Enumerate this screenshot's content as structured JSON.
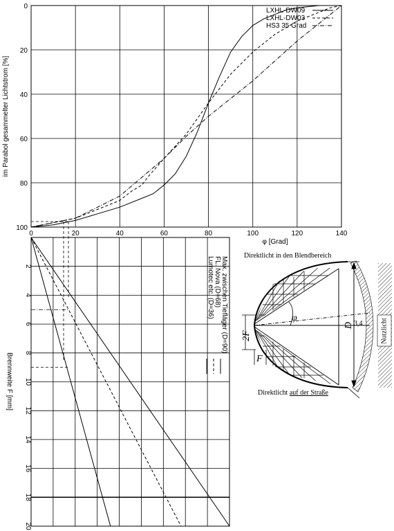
{
  "chart_data": [
    {
      "type": "line",
      "xlabel": "φ [Grad]",
      "ylabel": "im Parabol gesammelter Lichtstrom [%]",
      "xlim": [
        0,
        140
      ],
      "ylim": [
        0,
        100
      ],
      "y_inverted": true,
      "xticks": [
        "0",
        "20",
        "40",
        "60",
        "80",
        "100",
        "120",
        "140"
      ],
      "yticks": [
        "0",
        "20",
        "40",
        "60",
        "80",
        "100"
      ],
      "grid": true,
      "legend_position": "top-right",
      "series": [
        {
          "name": "LXHL-DW09",
          "style": "solid",
          "x": [
            0,
            10,
            20,
            30,
            40,
            50,
            55,
            60,
            65,
            70,
            75,
            80,
            85,
            90,
            95,
            100,
            105,
            110,
            115,
            120,
            125,
            130
          ],
          "y": [
            100,
            99,
            97,
            94,
            91,
            87,
            85,
            81,
            76,
            68,
            57,
            44,
            32,
            21,
            14,
            9,
            6,
            4,
            2,
            1,
            0.5,
            0
          ]
        },
        {
          "name": "LXHL-DW03",
          "style": "dashed",
          "x": [
            0,
            20,
            40,
            45,
            50,
            53,
            60,
            70,
            80,
            90,
            100,
            110,
            120,
            130,
            135,
            140
          ],
          "y": [
            100,
            96,
            88,
            84,
            81,
            77,
            69,
            58,
            44,
            31,
            21,
            13,
            7,
            3,
            1,
            0
          ]
        },
        {
          "name": "HS3 35 Grad",
          "style": "dashdot",
          "x": [
            0,
            20,
            40,
            60,
            70,
            80,
            90,
            100,
            110,
            120,
            130,
            140
          ],
          "y": [
            100,
            96,
            86,
            69,
            59,
            50,
            42,
            34,
            25,
            16,
            8,
            0
          ]
        }
      ]
    },
    {
      "type": "line",
      "xlabel": "",
      "ylabel": "Brennweite F [mm]",
      "xlim": [
        0,
        90
      ],
      "ylim": [
        0,
        20
      ],
      "y_inverted": true,
      "xticks": [
        "0",
        "20",
        "40",
        "60",
        "80",
        "100",
        "120",
        "140"
      ],
      "yticks": [
        "2",
        "4",
        "6",
        "8",
        "10",
        "12",
        "14",
        "16",
        "18",
        "20"
      ],
      "grid": true,
      "legend_position": "right (rotated)",
      "series": [
        {
          "name": "Max. zwischen Tiefläger (D=90)",
          "style": "solid",
          "x": [
            0,
            90
          ],
          "y": [
            0,
            20
          ]
        },
        {
          "name": "FL. Nova (D=68)",
          "style": "dashed",
          "x": [
            0,
            68
          ],
          "y": [
            0,
            20
          ]
        },
        {
          "name": "Lumotec etc. (D=36)",
          "style": "solid",
          "x": [
            0,
            36
          ],
          "y": [
            0,
            20
          ]
        }
      ],
      "reference_lines": [
        {
          "y": 18,
          "style": "solid"
        },
        {
          "y": 9,
          "style": "dashed"
        },
        {
          "y": 5,
          "style": "dashdot"
        }
      ]
    }
  ],
  "diagram": {
    "label_blend": "Direktlicht in den Blendbereich",
    "label_strasse_prefix": "Direktlicht ",
    "label_strasse_underlined": "auf der Straße",
    "label_nutzlicht": "Nutzlicht",
    "label_phi": "φ",
    "label_d": "D",
    "label_34": "3,4",
    "label_2f": "2F",
    "label_f": "F"
  },
  "colors": {
    "ink": "#000000",
    "background": "#ffffff"
  }
}
